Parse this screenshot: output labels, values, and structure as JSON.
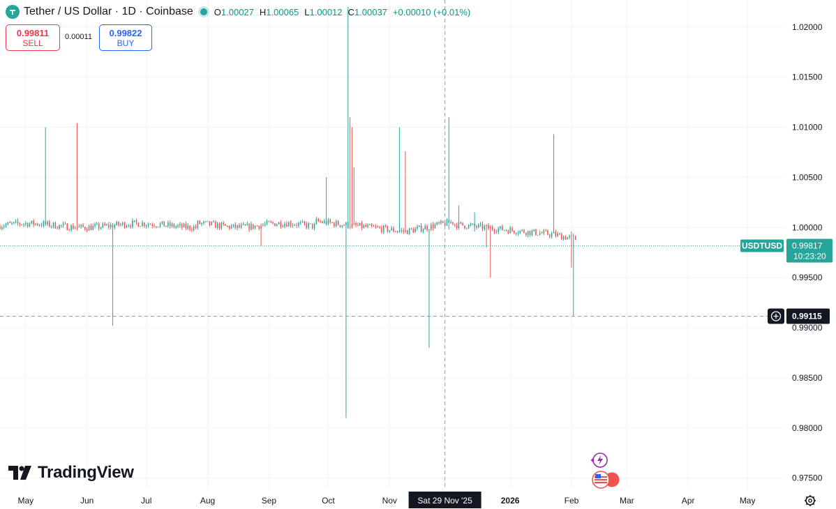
{
  "header": {
    "title": "Tether / US Dollar · 1D · Coinbase",
    "ohlc": [
      {
        "k": "O",
        "v": "1.00027"
      },
      {
        "k": "H",
        "v": "1.00065"
      },
      {
        "k": "L",
        "v": "1.00012"
      },
      {
        "k": "C",
        "v": "1.00037"
      },
      {
        "k": "",
        "v": "+0.00010 (+0.01%)"
      }
    ]
  },
  "trade": {
    "sell_price": "0.99811",
    "sell_label": "SELL",
    "spread": "0.00011",
    "buy_price": "0.99822",
    "buy_label": "BUY"
  },
  "branding": {
    "name": "TradingView"
  },
  "colors": {
    "up": "#26a69a",
    "down": "#ef5350",
    "grid": "#f0f3fa",
    "price_line": "#26a69a",
    "crosshair": "#9598a1"
  },
  "price_axis": {
    "ticks": [
      "1.02000",
      "1.01500",
      "1.01000",
      "1.00500",
      "1.00000",
      "0.99500",
      "0.99000",
      "0.98500",
      "0.98000",
      "0.97500"
    ]
  },
  "time_axis": {
    "ticks": [
      "May",
      "Jun",
      "Jul",
      "Aug",
      "Sep",
      "Oct",
      "Nov",
      "2026",
      "Feb",
      "Mar",
      "Apr",
      "May"
    ],
    "crosshair_label": "Sat 29 Nov '25"
  },
  "current_price": {
    "symbol": "USDTUSD",
    "price": "0.99817",
    "countdown": "10:23:20"
  },
  "crosshair": {
    "price": "0.99115",
    "date": "Sat 29 Nov '25"
  },
  "chart_data": {
    "type": "candlestick",
    "title": "Tether / US Dollar · 1D · Coinbase",
    "x_range": [
      "2025-04-18",
      "2026-05-20"
    ],
    "y_range": [
      0.974,
      1.022
    ],
    "grid": true,
    "last_price": 0.99817,
    "spikes": [
      {
        "date": "2025-05-11",
        "high": 1.01,
        "low": 1.0002,
        "color": "up"
      },
      {
        "date": "2025-05-27",
        "high": 1.0104,
        "low": 1.0003,
        "color": "down"
      },
      {
        "date": "2025-06-14",
        "high": 1.0002,
        "low": 0.9902,
        "color": "down"
      },
      {
        "date": "2025-08-28",
        "high": 0.9998,
        "low": 0.9982,
        "color": "down"
      },
      {
        "date": "2025-09-30",
        "high": 1.005,
        "low": 1.0002,
        "color": "up"
      },
      {
        "date": "2025-10-10",
        "high": 1.0003,
        "low": 0.981,
        "color": "up"
      },
      {
        "date": "2025-10-11",
        "high": 1.022,
        "low": 1.0005,
        "color": "up"
      },
      {
        "date": "2025-10-12",
        "high": 1.011,
        "low": 1.0005,
        "color": "down"
      },
      {
        "date": "2025-10-13",
        "high": 1.01,
        "low": 1.0003,
        "color": "down"
      },
      {
        "date": "2025-10-14",
        "high": 1.006,
        "low": 1.0002,
        "color": "down"
      },
      {
        "date": "2025-11-06",
        "high": 1.01,
        "low": 0.9998,
        "color": "up"
      },
      {
        "date": "2025-11-09",
        "high": 1.0076,
        "low": 0.9997,
        "color": "down"
      },
      {
        "date": "2025-11-21",
        "high": 0.9996,
        "low": 0.988,
        "color": "up"
      },
      {
        "date": "2025-12-01",
        "high": 1.011,
        "low": 0.9998,
        "color": "up"
      },
      {
        "date": "2025-12-06",
        "high": 1.0022,
        "low": 0.9998,
        "color": "up"
      },
      {
        "date": "2025-12-14",
        "high": 1.0015,
        "low": 0.9996,
        "color": "up"
      },
      {
        "date": "2025-12-20",
        "high": 0.9998,
        "low": 0.998,
        "color": "down"
      },
      {
        "date": "2025-12-22",
        "high": 0.9998,
        "low": 0.995,
        "color": "down"
      },
      {
        "date": "2026-01-23",
        "high": 1.0093,
        "low": 0.9998,
        "color": "up"
      },
      {
        "date": "2026-02-01",
        "high": 0.9996,
        "low": 0.996,
        "color": "down"
      },
      {
        "date": "2026-02-02",
        "high": 0.9994,
        "low": 0.9911,
        "color": "up"
      }
    ]
  },
  "events": {
    "flash_icon": "lightning-icon",
    "flag_icon": "us-flag-icon"
  }
}
